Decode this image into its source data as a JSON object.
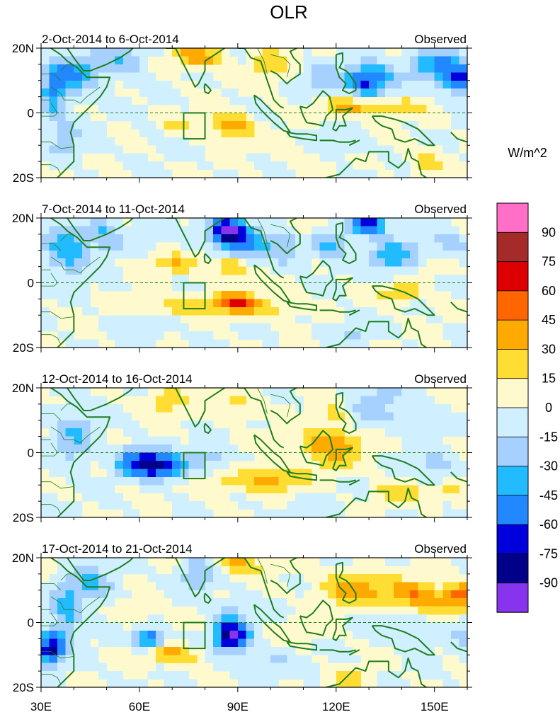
{
  "chart_data": {
    "type": "heatmap",
    "title": "OLR",
    "units": "W/m^2",
    "lat_ticks": [
      "20N",
      "0",
      "20S"
    ],
    "lon_ticks": [
      "30E",
      "60E",
      "90E",
      "120E",
      "150E"
    ],
    "lon_range": [
      30,
      160
    ],
    "lat_range": [
      -20,
      20
    ],
    "colorbar": {
      "labels": [
        "90",
        "75",
        "60",
        "45",
        "30",
        "15",
        "0",
        "-15",
        "-30",
        "-45",
        "-60",
        "-75",
        "-90"
      ],
      "colors": [
        "#ff6ec7",
        "#a52a2a",
        "#dd0000",
        "#ff6600",
        "#ffaa00",
        "#ffdd33",
        "#fffacd",
        "#d0f0ff",
        "#a6d1ff",
        "#22bbff",
        "#2288ff",
        "#0000dd",
        "#000088",
        "#8833ee"
      ]
    },
    "panels": [
      {
        "period": "2-Oct-2014 to 6-Oct-2014",
        "label": "Observed"
      },
      {
        "period": "7-Oct-2014 to 11-Oct-2014",
        "label": "Observed"
      },
      {
        "period": "12-Oct-2014 to 16-Oct-2014",
        "label": "Observed"
      },
      {
        "period": "17-Oct-2014 to 21-Oct-2014",
        "label": "Observed"
      }
    ]
  }
}
